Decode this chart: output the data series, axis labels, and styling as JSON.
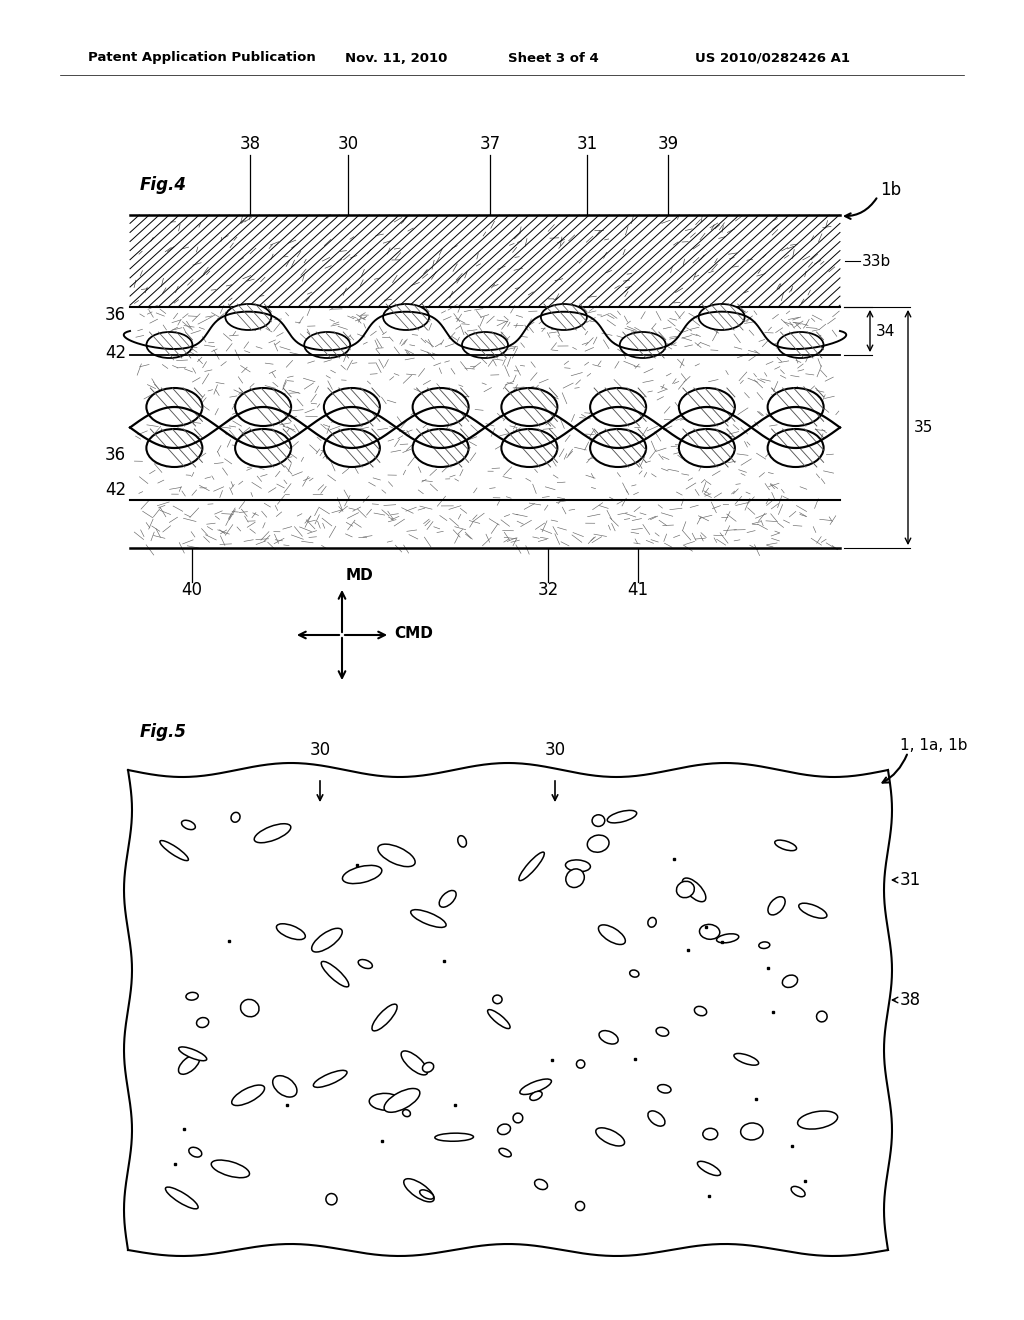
{
  "bg_color": "#ffffff",
  "fig_width": 10.24,
  "fig_height": 13.2,
  "header_text": "Patent Application Publication",
  "header_date": "Nov. 11, 2010",
  "header_sheet": "Sheet 3 of 4",
  "header_patent": "US 2010/0282426 A1",
  "fig4_label": "Fig.4",
  "fig5_label": "Fig.5",
  "ref_1b": "1b",
  "ref_33b": "33b",
  "ref_34": "34",
  "ref_35": "35",
  "ref_36": "36",
  "ref_38_top": "38",
  "ref_30_top": "30",
  "ref_37": "37",
  "ref_31_top": "31",
  "ref_39": "39",
  "ref_42a": "42",
  "ref_42b": "42",
  "ref_36a": "36",
  "ref_36b": "36",
  "ref_40": "40",
  "ref_32": "32",
  "ref_41": "41",
  "ref_30_5a": "30",
  "ref_30_5b": "30",
  "ref_31_5": "31",
  "ref_38_5": "38",
  "ref_1_1a_1b": "1, 1a, 1b",
  "ref_MD": "MD",
  "ref_CMD": "CMD"
}
